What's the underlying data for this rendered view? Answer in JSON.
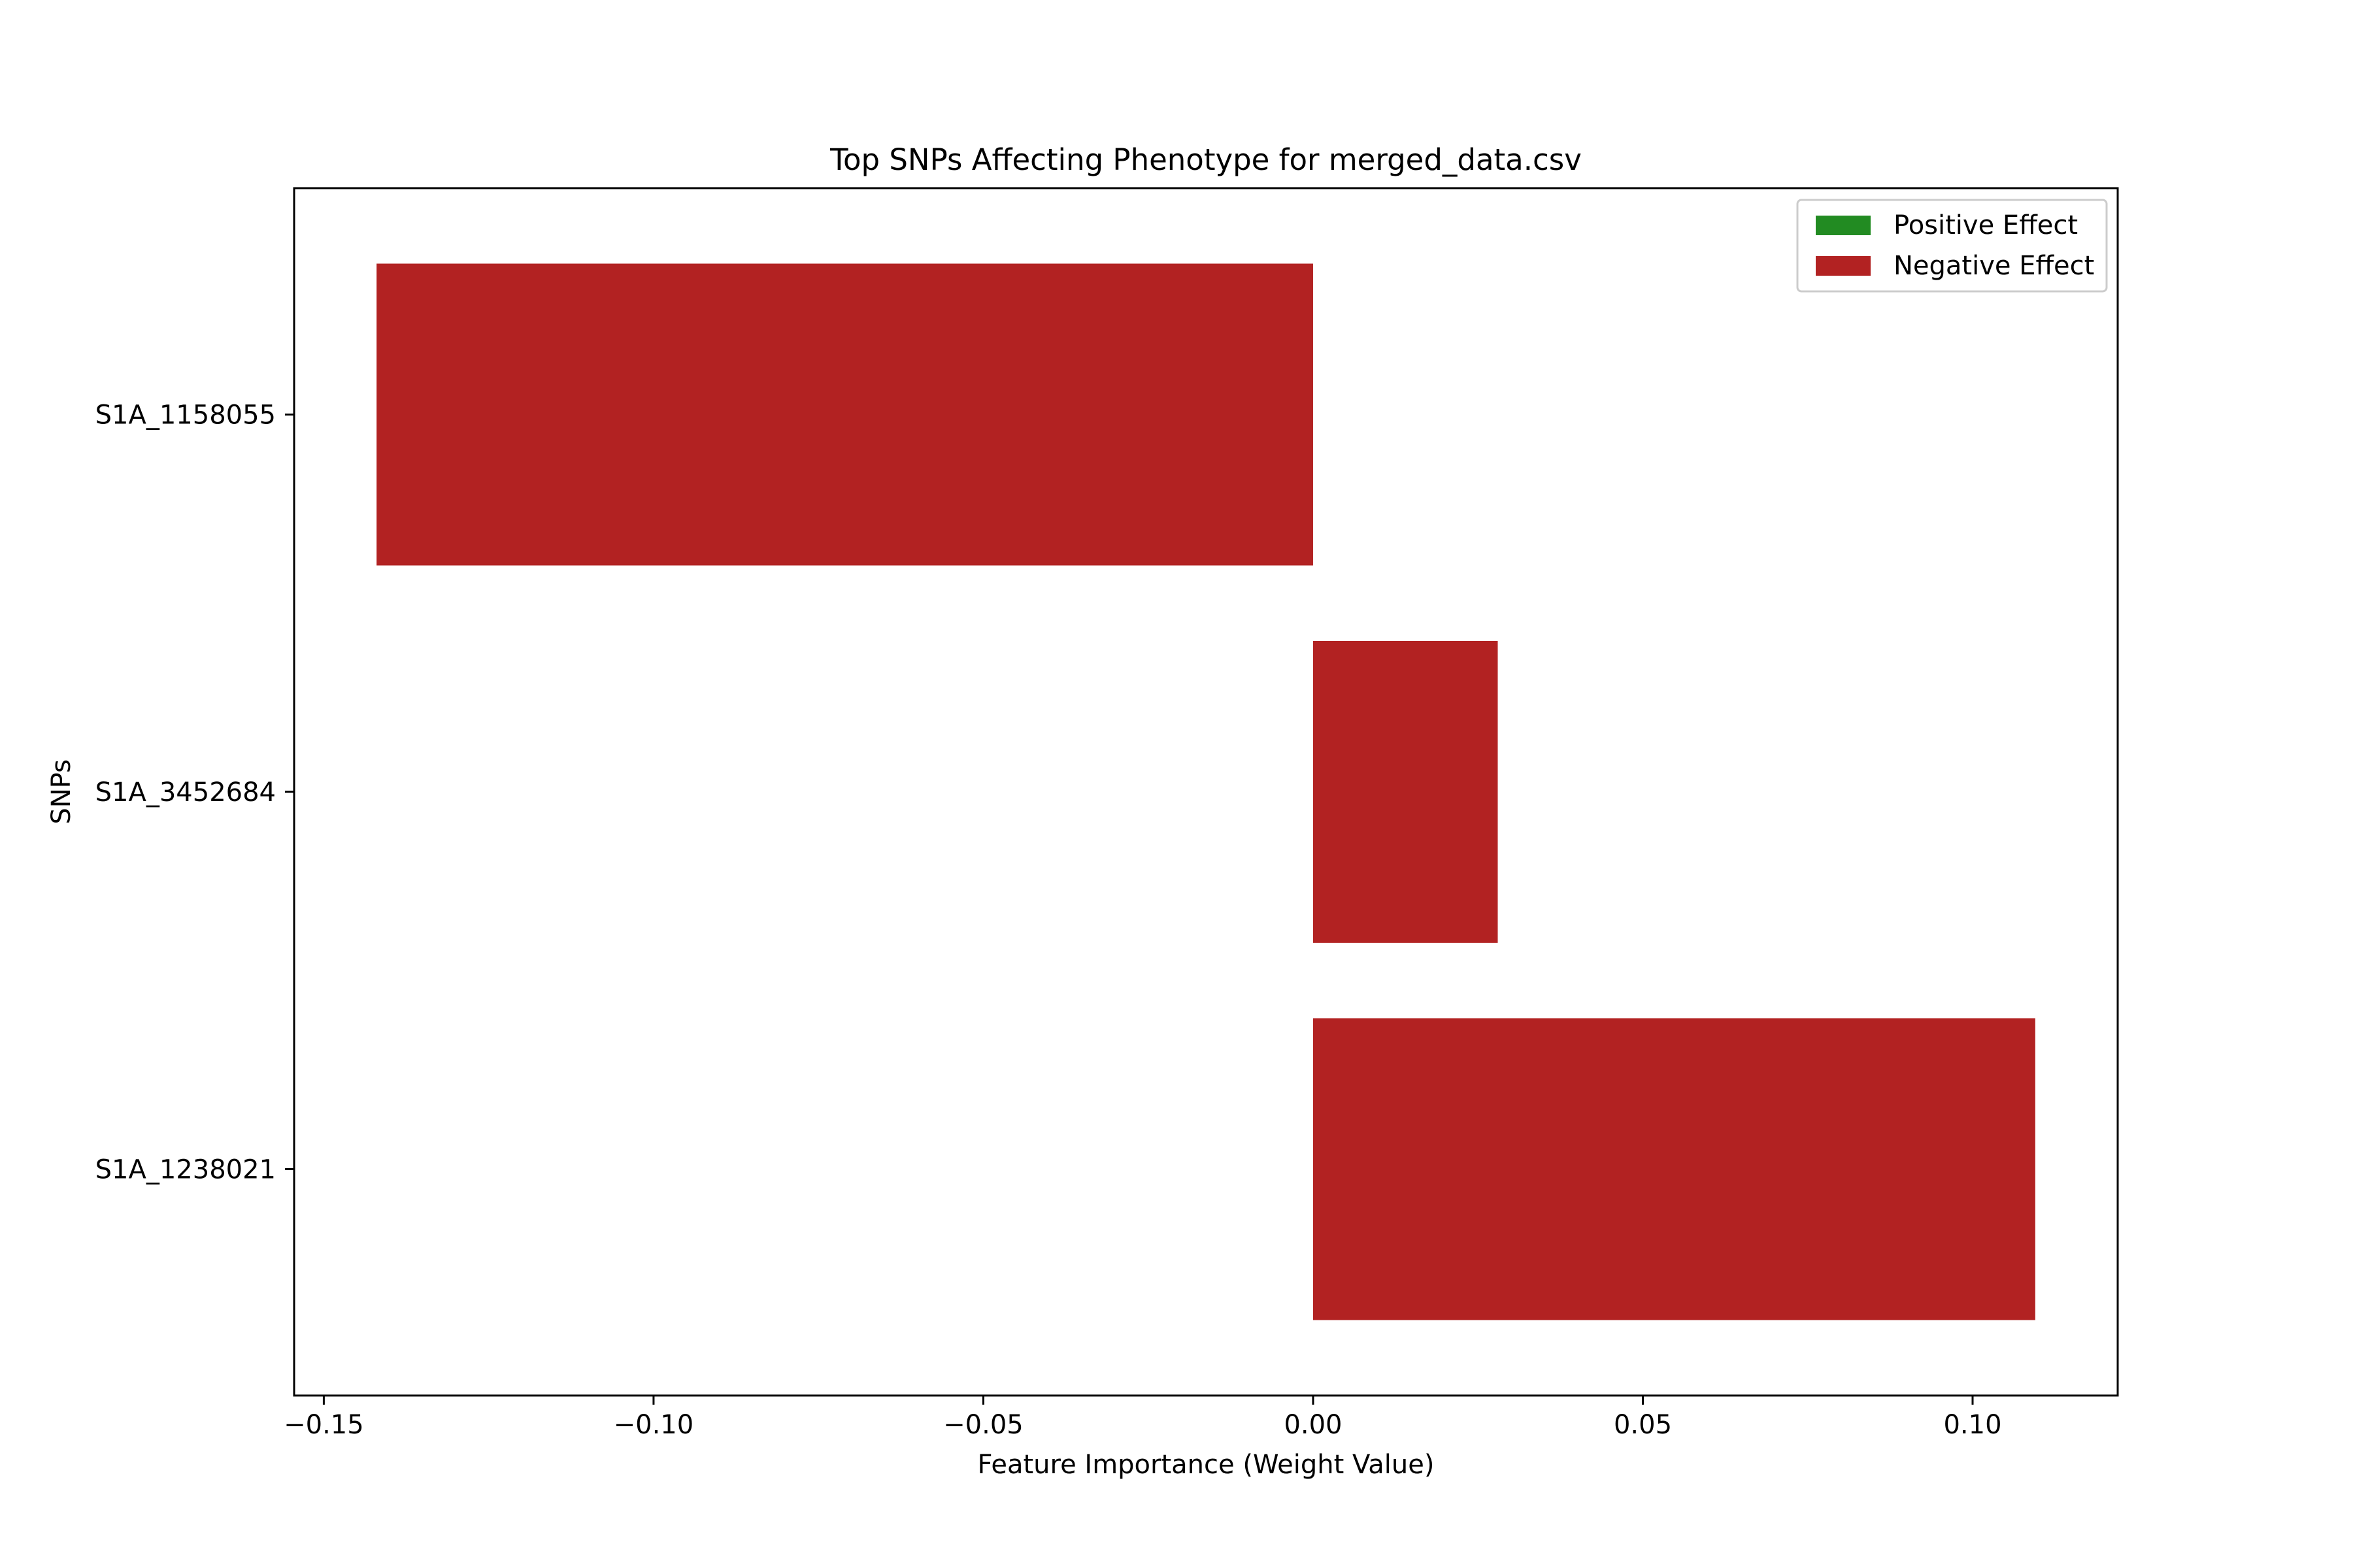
{
  "chart_data": {
    "type": "bar",
    "orientation": "horizontal",
    "title": "Top SNPs Affecting Phenotype for merged_data.csv",
    "xlabel": "Feature Importance (Weight Value)",
    "ylabel": "SNPs",
    "categories": [
      "S1A_1158055",
      "S1A_3452684",
      "S1A_1238021"
    ],
    "values": [
      -0.142,
      0.028,
      0.1095
    ],
    "bar_color": "#b22222",
    "xlim": [
      -0.1545,
      0.122
    ],
    "xticks": [
      -0.15,
      -0.1,
      -0.05,
      0.0,
      0.05,
      0.1
    ],
    "xtick_labels": [
      "−0.15",
      "−0.10",
      "−0.05",
      "0.00",
      "0.05",
      "0.10"
    ],
    "grid": false,
    "legend": {
      "placement": "top-right",
      "entries": [
        {
          "label": "Positive Effect",
          "color": "#228b22"
        },
        {
          "label": "Negative Effect",
          "color": "#b22222"
        }
      ]
    }
  }
}
